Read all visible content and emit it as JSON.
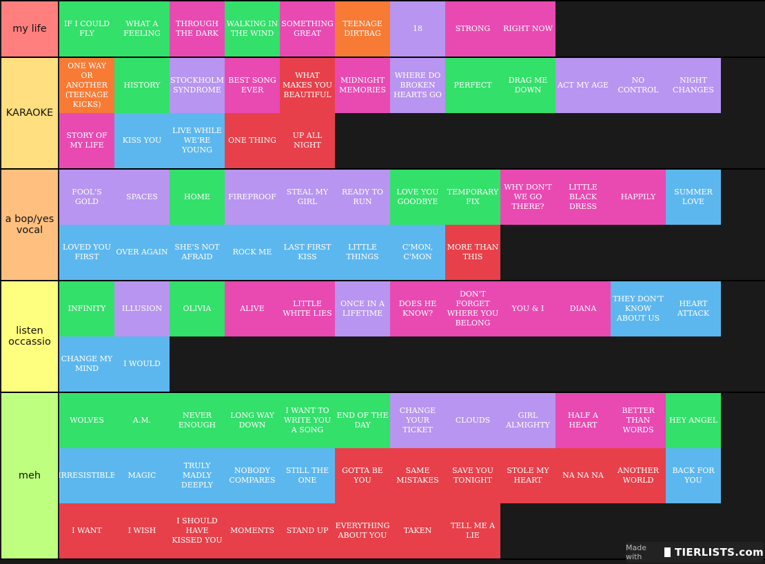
{
  "colors": {
    "green": "#33e06a",
    "pink": "#e84ab2",
    "orange": "#f87b35",
    "purple": "#b895f0",
    "red": "#e8404a",
    "blue": "#5db7ef"
  },
  "tiers": [
    {
      "label": "my life",
      "color": "#ff7f7f",
      "items": [
        {
          "name": "IF I COULD FLY",
          "color": "green"
        },
        {
          "name": "WHAT A FEELING",
          "color": "green"
        },
        {
          "name": "THROUGH THE DARK",
          "color": "pink"
        },
        {
          "name": "WALKING IN THE WIND",
          "color": "green"
        },
        {
          "name": "SOMETHING GREAT",
          "color": "pink"
        },
        {
          "name": "TEENAGE DIRTBAG",
          "color": "orange"
        },
        {
          "name": "18",
          "color": "purple"
        },
        {
          "name": "STRONG",
          "color": "pink"
        },
        {
          "name": "RIGHT NOW",
          "color": "pink"
        }
      ]
    },
    {
      "label": "KARAOKE",
      "color": "#ffdf7f",
      "items": [
        {
          "name": "ONE WAY OR ANOTHER (TEENAGE KICKS)",
          "color": "orange"
        },
        {
          "name": "HISTORY",
          "color": "green"
        },
        {
          "name": "STOCKHOLM SYNDROME",
          "color": "purple"
        },
        {
          "name": "BEST SONG EVER",
          "color": "pink"
        },
        {
          "name": "WHAT MAKES YOU BEAUTIFUL",
          "color": "red"
        },
        {
          "name": "MIDNIGHT MEMORIES",
          "color": "pink"
        },
        {
          "name": "WHERE DO BROKEN HEARTS GO",
          "color": "purple"
        },
        {
          "name": "PERFECT",
          "color": "green"
        },
        {
          "name": "DRAG ME DOWN",
          "color": "green"
        },
        {
          "name": "ACT MY AGE",
          "color": "purple"
        },
        {
          "name": "NO CONTROL",
          "color": "purple"
        },
        {
          "name": "NIGHT CHANGES",
          "color": "purple"
        },
        {
          "name": "STORY OF MY LIFE",
          "color": "pink"
        },
        {
          "name": "KISS YOU",
          "color": "blue"
        },
        {
          "name": "LIVE WHILE WE'RE YOUNG",
          "color": "blue"
        },
        {
          "name": "ONE THING",
          "color": "red"
        },
        {
          "name": "UP ALL NIGHT",
          "color": "red"
        }
      ]
    },
    {
      "label": "a bop/yes vocal",
      "color": "#ffbf7f",
      "items": [
        {
          "name": "FOOL'S GOLD",
          "color": "purple"
        },
        {
          "name": "SPACES",
          "color": "purple"
        },
        {
          "name": "HOME",
          "color": "green"
        },
        {
          "name": "FIREPROOF",
          "color": "purple"
        },
        {
          "name": "STEAL MY GIRL",
          "color": "purple"
        },
        {
          "name": "READY TO RUN",
          "color": "purple"
        },
        {
          "name": "LOVE YOU GOODBYE",
          "color": "green"
        },
        {
          "name": "TEMPORARY FIX",
          "color": "green"
        },
        {
          "name": "WHY DON'T WE GO THERE?",
          "color": "pink"
        },
        {
          "name": "LITTLE BLACK DRESS",
          "color": "pink"
        },
        {
          "name": "HAPPILY",
          "color": "pink"
        },
        {
          "name": "SUMMER LOVE",
          "color": "blue"
        },
        {
          "name": "LOVED YOU FIRST",
          "color": "blue"
        },
        {
          "name": "OVER AGAIN",
          "color": "blue"
        },
        {
          "name": "SHE'S NOT AFRAID",
          "color": "blue"
        },
        {
          "name": "ROCK ME",
          "color": "blue"
        },
        {
          "name": "LAST FIRST KISS",
          "color": "blue"
        },
        {
          "name": "LITTLE THINGS",
          "color": "blue"
        },
        {
          "name": "C'MON, C'MON",
          "color": "blue"
        },
        {
          "name": "MORE THAN THIS",
          "color": "red"
        }
      ]
    },
    {
      "label": "listen occassio",
      "color": "#ffff7f",
      "items": [
        {
          "name": "INFINITY",
          "color": "green"
        },
        {
          "name": "ILLUSION",
          "color": "purple"
        },
        {
          "name": "OLIVIA",
          "color": "green"
        },
        {
          "name": "ALIVE",
          "color": "pink"
        },
        {
          "name": "LITTLE WHITE LIES",
          "color": "pink"
        },
        {
          "name": "ONCE IN A LIFETIME",
          "color": "purple"
        },
        {
          "name": "DOES HE KNOW?",
          "color": "pink"
        },
        {
          "name": "DON'T FORGET WHERE YOU BELONG",
          "color": "pink"
        },
        {
          "name": "YOU & I",
          "color": "pink"
        },
        {
          "name": "DIANA",
          "color": "pink"
        },
        {
          "name": "THEY DON'T KNOW ABOUT US",
          "color": "blue"
        },
        {
          "name": "HEART ATTACK",
          "color": "blue"
        },
        {
          "name": "CHANGE MY MIND",
          "color": "blue"
        },
        {
          "name": "I WOULD",
          "color": "blue"
        }
      ]
    },
    {
      "label": "meh",
      "color": "#bfff7f",
      "items": [
        {
          "name": "WOLVES",
          "color": "green"
        },
        {
          "name": "A.M.",
          "color": "green"
        },
        {
          "name": "NEVER ENOUGH",
          "color": "green"
        },
        {
          "name": "LONG WAY DOWN",
          "color": "green"
        },
        {
          "name": "I WANT TO WRITE YOU A SONG",
          "color": "green"
        },
        {
          "name": "END OF THE DAY",
          "color": "green"
        },
        {
          "name": "CHANGE YOUR TICKET",
          "color": "purple"
        },
        {
          "name": "CLOUDS",
          "color": "purple"
        },
        {
          "name": "GIRL ALMIGHTY",
          "color": "purple"
        },
        {
          "name": "HALF A HEART",
          "color": "pink"
        },
        {
          "name": "BETTER THAN WORDS",
          "color": "pink"
        },
        {
          "name": "HEY ANGEL",
          "color": "green"
        },
        {
          "name": "IRRESISTIBLE",
          "color": "blue"
        },
        {
          "name": "MAGIC",
          "color": "blue"
        },
        {
          "name": "TRULY MADLY DEEPLY",
          "color": "blue"
        },
        {
          "name": "NOBODY COMPARES",
          "color": "blue"
        },
        {
          "name": "STILL THE ONE",
          "color": "blue"
        },
        {
          "name": "GOTTA BE YOU",
          "color": "red"
        },
        {
          "name": "SAME MISTAKES",
          "color": "red"
        },
        {
          "name": "SAVE YOU TONIGHT",
          "color": "red"
        },
        {
          "name": "STOLE MY HEART",
          "color": "red"
        },
        {
          "name": "NA NA NA",
          "color": "red"
        },
        {
          "name": "ANOTHER WORLD",
          "color": "red"
        },
        {
          "name": "BACK FOR YOU",
          "color": "blue"
        },
        {
          "name": "I WANT",
          "color": "red"
        },
        {
          "name": "I WISH",
          "color": "red"
        },
        {
          "name": "I SHOULD HAVE KISSED YOU",
          "color": "red"
        },
        {
          "name": "MOMENTS",
          "color": "red"
        },
        {
          "name": "STAND UP",
          "color": "red"
        },
        {
          "name": "EVERYTHING ABOUT YOU",
          "color": "red"
        },
        {
          "name": "TAKEN",
          "color": "red"
        },
        {
          "name": "TELL ME A LIE",
          "color": "red"
        }
      ]
    }
  ],
  "watermark": {
    "made_with": "Made with",
    "brand": "TIERLISTS.com"
  }
}
